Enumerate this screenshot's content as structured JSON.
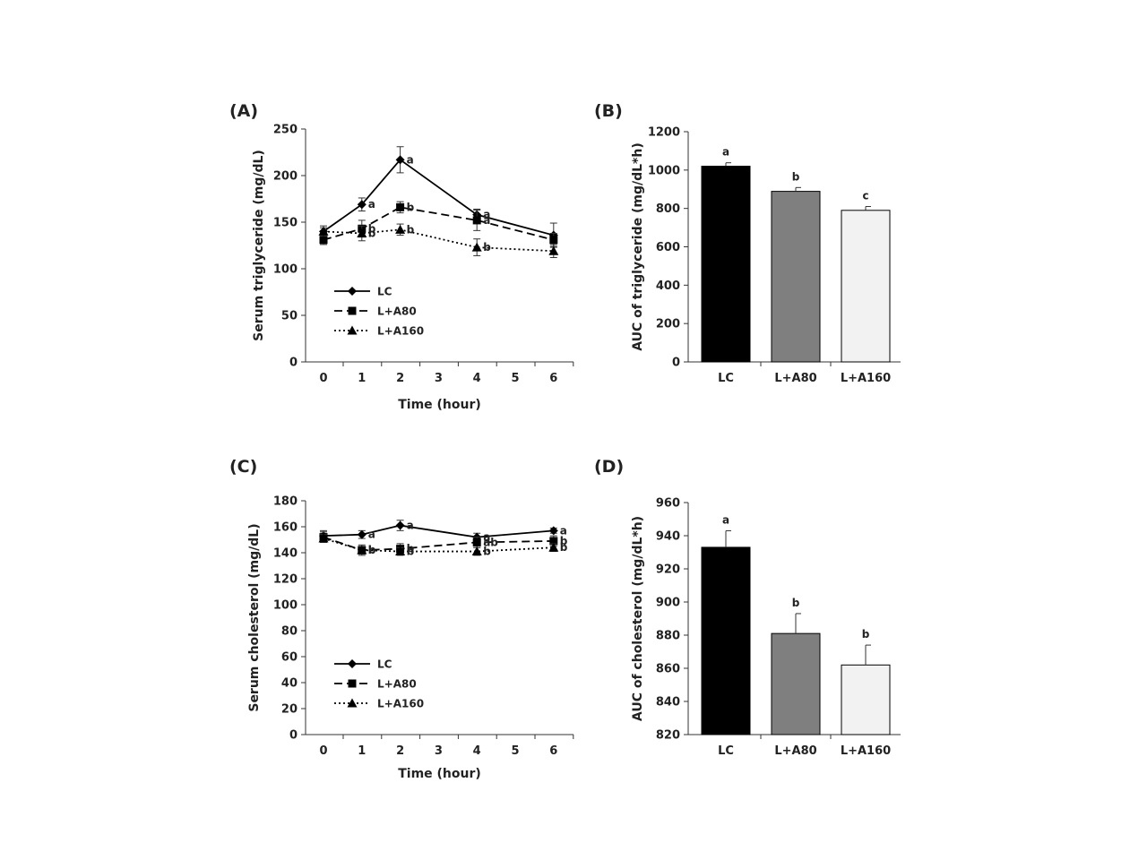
{
  "panels": [
    {
      "label": "(A)",
      "chart_data": {
        "type": "line",
        "x": [
          0,
          1,
          2,
          4,
          6
        ],
        "xticks": [
          "0",
          "1",
          "2",
          "3",
          "4",
          "5",
          "6"
        ],
        "xlabel": "Time (hour)",
        "ylabel": "Serum triglyceride (mg/dL)",
        "ylim": [
          0,
          250
        ],
        "yticks": [
          "0",
          "50",
          "100",
          "150",
          "200",
          "250"
        ],
        "legend_position": "lower-left",
        "series": [
          {
            "name": "LC",
            "style": "solid",
            "marker": "diamond",
            "values": [
              140,
              169,
              217,
              158,
              136
            ],
            "errors": [
              6,
              7,
              14,
              6,
              13
            ],
            "sig": [
              "",
              "a",
              "a",
              "a",
              ""
            ]
          },
          {
            "name": "L+A80",
            "style": "dashed",
            "marker": "square",
            "values": [
              131,
              143,
              166,
              152,
              131
            ],
            "errors": [
              5,
              9,
              6,
              11,
              7
            ],
            "sig": [
              "",
              "b",
              "b",
              "a",
              ""
            ]
          },
          {
            "name": "L+A160",
            "style": "dotted",
            "marker": "triangle",
            "values": [
              140,
              138,
              142,
              123,
              119
            ],
            "errors": [
              4,
              8,
              6,
              9,
              7
            ],
            "sig": [
              "",
              "b",
              "b",
              "b",
              ""
            ]
          }
        ]
      }
    },
    {
      "label": "(B)",
      "chart_data": {
        "type": "bar",
        "categories": [
          "LC",
          "L+A80",
          "L+A160"
        ],
        "values": [
          1020,
          889,
          790
        ],
        "errors": [
          18,
          20,
          20
        ],
        "sig": [
          "a",
          "b",
          "c"
        ],
        "colors": [
          "#000000",
          "#7f7f7f",
          "#f2f2f2"
        ],
        "ylabel": "AUC of triglyceride (mg/dL*h)",
        "ylim": [
          0,
          1200
        ],
        "yticks": [
          "0",
          "200",
          "400",
          "600",
          "800",
          "1000",
          "1200"
        ]
      }
    },
    {
      "label": "(C)",
      "chart_data": {
        "type": "line",
        "x": [
          0,
          1,
          2,
          4,
          6
        ],
        "xticks": [
          "0",
          "1",
          "2",
          "3",
          "4",
          "5",
          "6"
        ],
        "xlabel": "Time (hour)",
        "ylabel": "Serum cholesterol (mg/dL)",
        "ylim": [
          0,
          180
        ],
        "yticks": [
          "0",
          "20",
          "40",
          "60",
          "80",
          "100",
          "120",
          "140",
          "160",
          "180"
        ],
        "legend_position": "lower-left",
        "series": [
          {
            "name": "LC",
            "style": "solid",
            "marker": "diamond",
            "values": [
              153,
              154,
              161,
              152,
              157
            ],
            "errors": [
              4,
              3,
              4,
              3,
              2
            ],
            "sig": [
              "",
              "a",
              "a",
              "a",
              "a"
            ]
          },
          {
            "name": "L+A80",
            "style": "dashed",
            "marker": "square",
            "values": [
              152,
              142,
              143,
              148,
              149
            ],
            "errors": [
              4,
              4,
              4,
              4,
              4
            ],
            "sig": [
              "",
              "b",
              "b",
              "ab",
              "b"
            ]
          },
          {
            "name": "L+A160",
            "style": "dotted",
            "marker": "triangle",
            "values": [
              151,
              142,
              141,
              141,
              144
            ],
            "errors": [
              3,
              3,
              3,
              3,
              3
            ],
            "sig": [
              "",
              "b",
              "b",
              "b",
              "b"
            ]
          }
        ]
      }
    },
    {
      "label": "(D)",
      "chart_data": {
        "type": "bar",
        "categories": [
          "LC",
          "L+A80",
          "L+A160"
        ],
        "values": [
          933,
          881,
          862
        ],
        "errors": [
          10,
          12,
          12
        ],
        "sig": [
          "a",
          "b",
          "b"
        ],
        "colors": [
          "#000000",
          "#7f7f7f",
          "#f2f2f2"
        ],
        "ylabel": "AUC of cholesterol (mg/dL*h)",
        "ylim": [
          820,
          960
        ],
        "yticks": [
          "820",
          "840",
          "860",
          "880",
          "900",
          "920",
          "940",
          "960"
        ]
      }
    }
  ]
}
